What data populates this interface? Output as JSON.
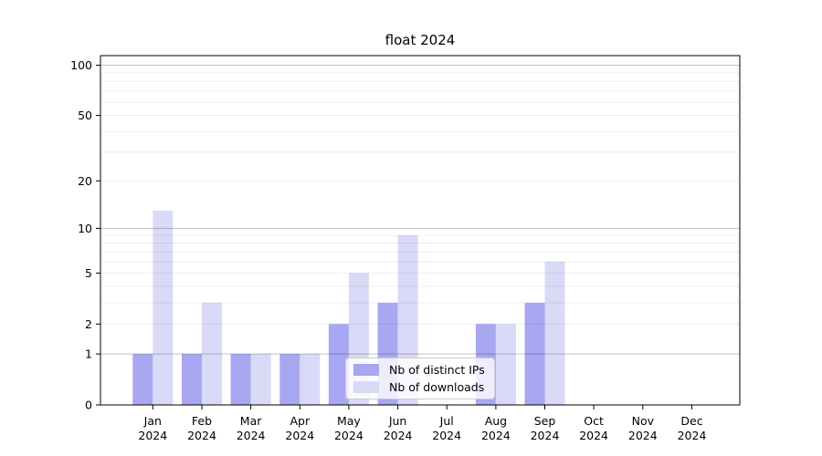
{
  "chart_data": {
    "type": "bar",
    "title": "float 2024",
    "categories": [
      "Jan",
      "Feb",
      "Mar",
      "Apr",
      "May",
      "Jun",
      "Jul",
      "Aug",
      "Sep",
      "Oct",
      "Nov",
      "Dec"
    ],
    "x_tick_year": "2024",
    "series": [
      {
        "name": "Nb of distinct IPs",
        "color": "#a7a7f2",
        "values": [
          1,
          1,
          1,
          1,
          2,
          3,
          0,
          2,
          3,
          0,
          0,
          0
        ]
      },
      {
        "name": "Nb of downloads",
        "color": "#d9d9f8",
        "values": [
          13,
          3,
          1,
          1,
          5,
          9,
          0,
          2,
          6,
          0,
          0,
          0
        ]
      }
    ],
    "yscale": "log1p",
    "ylim": [
      0,
      114
    ],
    "ytick_values": [
      0,
      1,
      2,
      5,
      10,
      20,
      50,
      100
    ],
    "major_gridlines": [
      1,
      10,
      100
    ],
    "minor_gridlines": [
      2,
      3,
      4,
      5,
      6,
      7,
      8,
      9,
      20,
      30,
      40,
      50,
      60,
      70,
      80,
      90
    ],
    "grid": true,
    "legend_position": "lower center",
    "colors": {
      "axis_line": "#000000",
      "tick_label": "#000000",
      "major_grid": "rgba(0,0,0,0.235)",
      "minor_grid": "rgba(0,0,0,0.075)",
      "background": "#ffffff"
    }
  }
}
